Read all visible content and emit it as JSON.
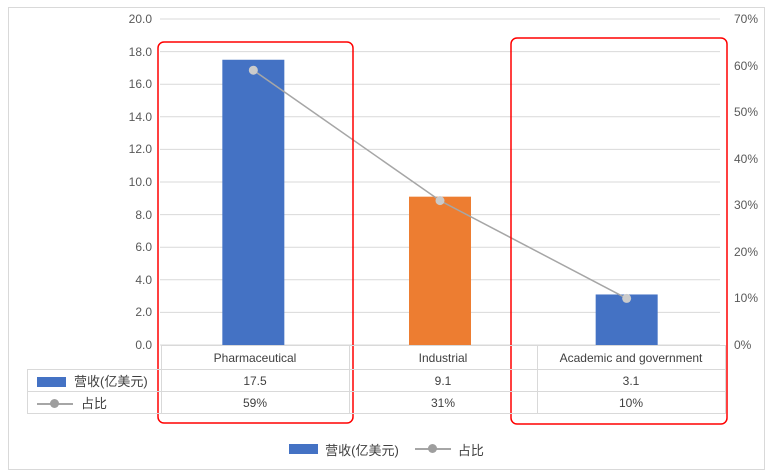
{
  "chart_data": {
    "type": "combo",
    "categories": [
      "Pharmaceutical",
      "Industrial",
      "Academic and government"
    ],
    "series": [
      {
        "name": "营收(亿美元)",
        "type": "bar",
        "axis": "left",
        "values": [
          17.5,
          9.1,
          3.1
        ],
        "bar_colors": [
          "#4472C4",
          "#ED7D31",
          "#4472C4"
        ]
      },
      {
        "name": "占比",
        "type": "line",
        "axis": "right",
        "values_percent": [
          59,
          31,
          10
        ],
        "line_color": "#A6A6A6",
        "marker_color": "#CBCBCB"
      }
    ],
    "left_axis": {
      "min": 0,
      "max": 20,
      "step": 2,
      "tick_labels": [
        "20.0",
        "18.0",
        "16.0",
        "14.0",
        "12.0",
        "10.0",
        "8.0",
        "6.0",
        "4.0",
        "2.0",
        "0.0"
      ]
    },
    "right_axis": {
      "min": 0,
      "max": 70,
      "step": 10,
      "tick_labels": [
        "70%",
        "60%",
        "50%",
        "40%",
        "30%",
        "20%",
        "10%",
        "0%"
      ]
    },
    "gridlines": true,
    "gridline_color": "#D9D9D9",
    "legend_position": "bottom",
    "highlighted_categories": [
      "Pharmaceutical",
      "Academic and government"
    ],
    "highlight_color": "#FF0000"
  },
  "data_table": {
    "column_headers": [
      "Pharmaceutical",
      "Industrial",
      "Academic and government"
    ],
    "rows": [
      {
        "label": "营收(亿美元)",
        "swatch": "bar",
        "values": [
          "17.5",
          "9.1",
          "3.1"
        ]
      },
      {
        "label": "占比",
        "swatch": "line",
        "values": [
          "59%",
          "31%",
          "10%"
        ]
      }
    ]
  },
  "legend": {
    "items": [
      {
        "label": "营收(亿美元)",
        "type": "bar",
        "color": "#4472C4"
      },
      {
        "label": "占比",
        "type": "line",
        "color": "#A6A6A6"
      }
    ]
  }
}
